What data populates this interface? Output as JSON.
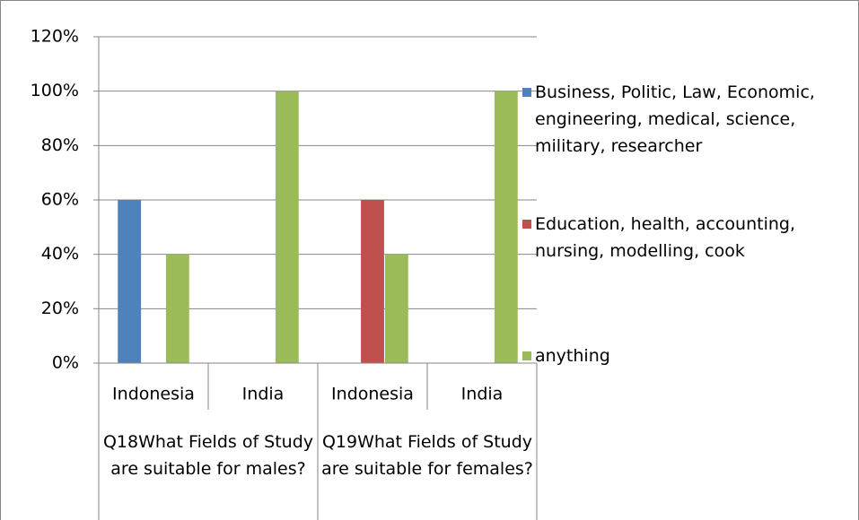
{
  "chart_data": {
    "type": "bar",
    "categories": [
      "Indonesia",
      "India",
      "Indonesia",
      "India"
    ],
    "groups": [
      "Q18What Fields of Study are suitable for males?",
      "Q19What Fields of Study are suitable for females?"
    ],
    "series": [
      {
        "name": "Business, Politic, Law, Economic, engineering, medical, science, military, researcher",
        "color": "#4f81bd",
        "values": [
          60,
          null,
          null,
          null
        ]
      },
      {
        "name": "Education, health, accounting, nursing, modelling, cook",
        "color": "#c0504d",
        "values": [
          null,
          null,
          60,
          null
        ]
      },
      {
        "name": "anything",
        "color": "#9bbb59",
        "values": [
          40,
          100,
          40,
          100
        ]
      }
    ],
    "ylim": [
      0,
      120
    ],
    "yticks": [
      {
        "value": 0,
        "label": "0%"
      },
      {
        "value": 20,
        "label": "20%"
      },
      {
        "value": 40,
        "label": "40%"
      },
      {
        "value": 60,
        "label": "60%"
      },
      {
        "value": 80,
        "label": "80%"
      },
      {
        "value": 100,
        "label": "100%"
      },
      {
        "value": 120,
        "label": "120%"
      }
    ],
    "grid": true,
    "legend": "right"
  }
}
